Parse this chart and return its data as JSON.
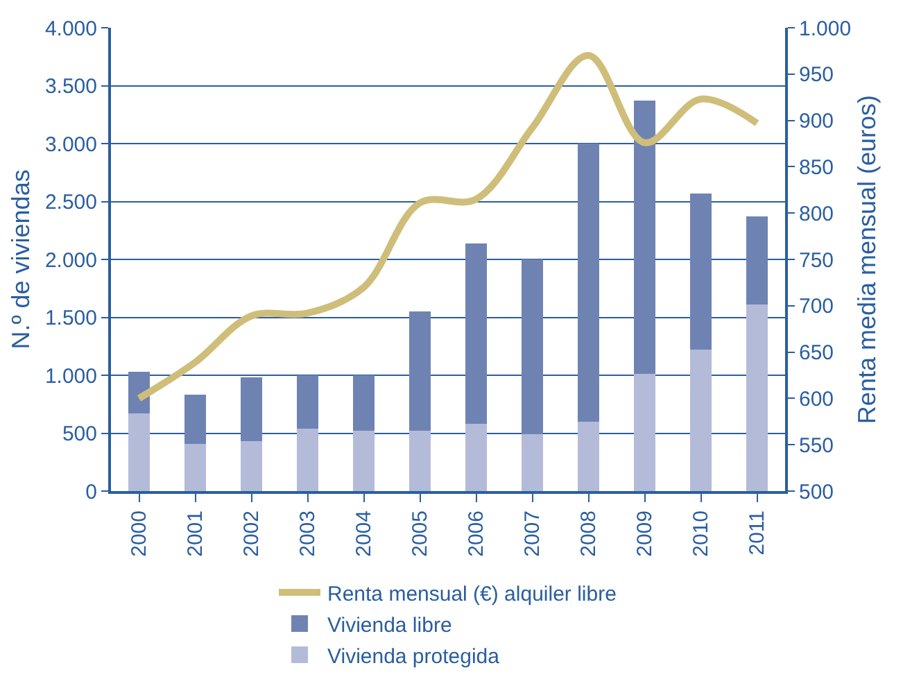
{
  "chart_data": {
    "type": "bar",
    "stacked": true,
    "xlabel": null,
    "ylabel": "N.º de viviendas",
    "y2label": "Renta media mensual (euros)",
    "categories": [
      "2000",
      "2001",
      "2002",
      "2003",
      "2004",
      "2005",
      "2006",
      "2007",
      "2008",
      "2009",
      "2010",
      "2011"
    ],
    "series": [
      {
        "name": "Vivienda protegida",
        "color": "#b4bbd9",
        "values": [
          670,
          410,
          430,
          540,
          520,
          520,
          580,
          490,
          600,
          1010,
          1220,
          1610
        ]
      },
      {
        "name": "Vivienda libre",
        "color": "#6f83b3",
        "values": [
          360,
          420,
          550,
          460,
          480,
          1030,
          1560,
          1510,
          2400,
          2360,
          1350,
          760
        ]
      },
      {
        "name": "Renta mensual (€) alquiler libre",
        "type": "line",
        "axis": "y2",
        "color": "#cfbe7a",
        "values": [
          600,
          639,
          689,
          692,
          720,
          811,
          815,
          892,
          970,
          876,
          923,
          897
        ]
      }
    ],
    "ylim": [
      0,
      4000
    ],
    "yticks": [
      {
        "value": 0,
        "label": "0"
      },
      {
        "value": 500,
        "label": "500"
      },
      {
        "value": 1000,
        "label": "1.000"
      },
      {
        "value": 1500,
        "label": "1.500"
      },
      {
        "value": 2000,
        "label": "2.000"
      },
      {
        "value": 2500,
        "label": "2.500"
      },
      {
        "value": 3000,
        "label": "3.000"
      },
      {
        "value": 3500,
        "label": "3.500"
      },
      {
        "value": 4000,
        "label": "4.000"
      }
    ],
    "y2lim": [
      500,
      1000
    ],
    "y2ticks": [
      500,
      550,
      600,
      650,
      700,
      750,
      800,
      850,
      900,
      950,
      {
        "value": 1000,
        "label": "1.000"
      }
    ],
    "grid": "y",
    "legend": "bottom",
    "line_style": "solid",
    "marker": "none"
  }
}
